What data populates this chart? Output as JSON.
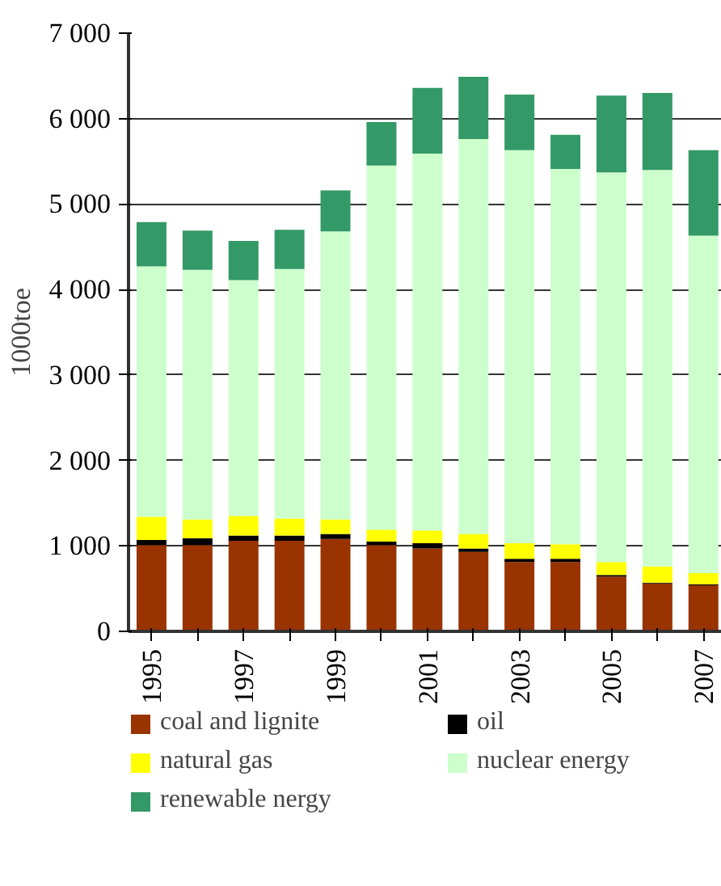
{
  "chart_data": {
    "type": "bar",
    "stacked": true,
    "ylabel": "1000toe",
    "categories": [
      "1995",
      null,
      "1997",
      null,
      "1999",
      null,
      "2001",
      null,
      "2003",
      null,
      "2005",
      null,
      "2007"
    ],
    "series": [
      {
        "name": "coal and lignite",
        "color": "#993300",
        "values": [
          1010,
          1010,
          1060,
          1060,
          1080,
          1010,
          970,
          930,
          810,
          810,
          640,
          560,
          540
        ]
      },
      {
        "name": "oil",
        "color": "#000000",
        "values": [
          60,
          80,
          60,
          60,
          60,
          40,
          60,
          40,
          40,
          40,
          20,
          10,
          10
        ]
      },
      {
        "name": "natural gas",
        "color": "#ffff00",
        "values": [
          270,
          220,
          230,
          200,
          170,
          140,
          150,
          170,
          180,
          170,
          150,
          190,
          130
        ]
      },
      {
        "name": "nuclear energy",
        "color": "#ccffcc",
        "values": [
          2930,
          2920,
          2760,
          2920,
          3370,
          4260,
          4410,
          4620,
          4600,
          4390,
          4560,
          4640,
          3950
        ]
      },
      {
        "name": "renewable nergy",
        "color": "#339966",
        "values": [
          520,
          460,
          460,
          460,
          480,
          510,
          770,
          730,
          650,
          400,
          900,
          900,
          1000
        ]
      }
    ],
    "ylim": [
      0,
      7000
    ],
    "yticks": [
      0,
      {
        "value": 1000,
        "label": "1 000"
      },
      {
        "value": 2000,
        "label": "2 000"
      },
      {
        "value": 3000,
        "label": "3 000"
      },
      {
        "value": 4000,
        "label": "4 000"
      },
      {
        "value": 5000,
        "label": "5 000"
      },
      {
        "value": 6000,
        "label": "6 000"
      },
      {
        "value": 7000,
        "label": "7 000"
      }
    ],
    "grid": "y",
    "legend": "bottom"
  }
}
